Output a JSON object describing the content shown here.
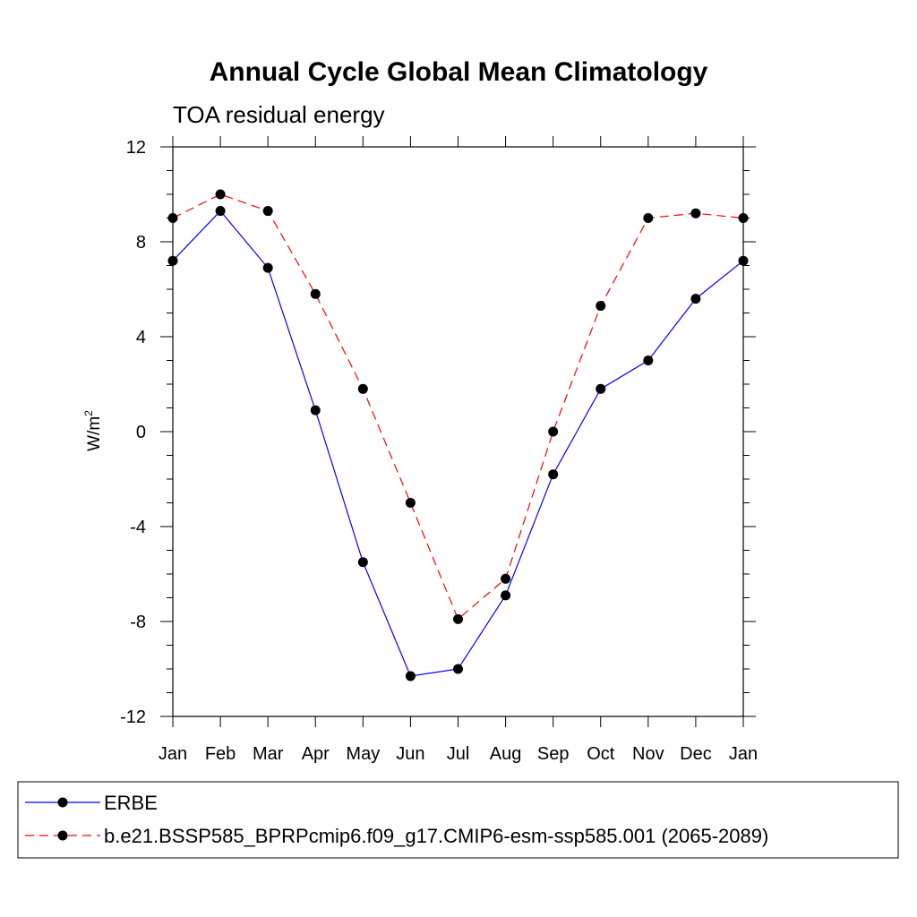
{
  "chart_data": {
    "type": "line",
    "title": "Annual Cycle Global Mean Climatology",
    "subtitle": "TOA residual energy",
    "xlabel": "",
    "ylabel": "W/m",
    "ylabel_superscript": "2",
    "categories": [
      "Jan",
      "Feb",
      "Mar",
      "Apr",
      "May",
      "Jun",
      "Jul",
      "Aug",
      "Sep",
      "Oct",
      "Nov",
      "Dec",
      "Jan"
    ],
    "ylim": [
      -12,
      12
    ],
    "yticks": [
      "12",
      "8",
      "4",
      "0",
      "-4",
      "-8",
      "-12"
    ],
    "ytick_values": [
      12,
      8,
      4,
      0,
      -4,
      -8,
      -12
    ],
    "grid": false,
    "legend_position": "bottom",
    "series": [
      {
        "name": "ERBE",
        "color": "#0000ff",
        "dash": "solid",
        "values": [
          7.2,
          9.3,
          6.9,
          0.9,
          -5.5,
          -10.3,
          -10.0,
          -6.9,
          -1.8,
          1.8,
          3.0,
          5.6,
          7.2
        ]
      },
      {
        "name": "b.e21.BSSP585_BPRPcmip6.f09_g17.CMIP6-esm-ssp585.001 (2065-2089)",
        "color": "#ff0000",
        "dash": "dashed",
        "values": [
          9.0,
          10.0,
          9.3,
          5.8,
          1.8,
          -3.0,
          -7.9,
          -6.2,
          0.0,
          5.3,
          9.0,
          9.2,
          9.0
        ]
      }
    ]
  }
}
